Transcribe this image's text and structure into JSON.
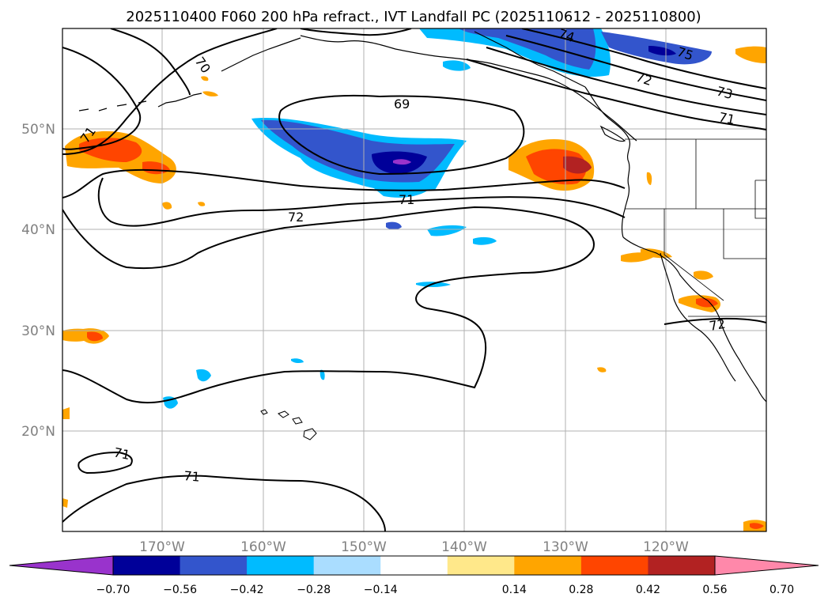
{
  "title": "2025110400 F060 200 hPa refract., IVT Landfall PC (2025110612 - 2025110800)",
  "lat_labels": [
    "50°N",
    "40°N",
    "30°N",
    "20°N"
  ],
  "lon_labels": [
    "170°W",
    "160°W",
    "150°W",
    "140°W",
    "130°W",
    "120°W"
  ],
  "contour_labels": [
    "70",
    "74",
    "75",
    "72",
    "73",
    "71",
    "69",
    "71",
    "72",
    "71",
    "71",
    "71",
    "72"
  ],
  "colorbar": {
    "tick_labels": [
      "−0.70",
      "−0.56",
      "−0.42",
      "−0.28",
      "−0.14",
      "0.14",
      "0.28",
      "0.42",
      "0.56",
      "0.70"
    ],
    "colors": [
      "#9933cc",
      "#000099",
      "#3355cc",
      "#00bbff",
      "#aaddff",
      "#ffffff",
      "#ffe88a",
      "#ffa500",
      "#ff4500",
      "#b22222",
      "#ff88aa"
    ]
  },
  "colors": {
    "frame": "#000000",
    "grid": "#b0b0b0",
    "contour": "#000000",
    "coast": "#000000"
  }
}
